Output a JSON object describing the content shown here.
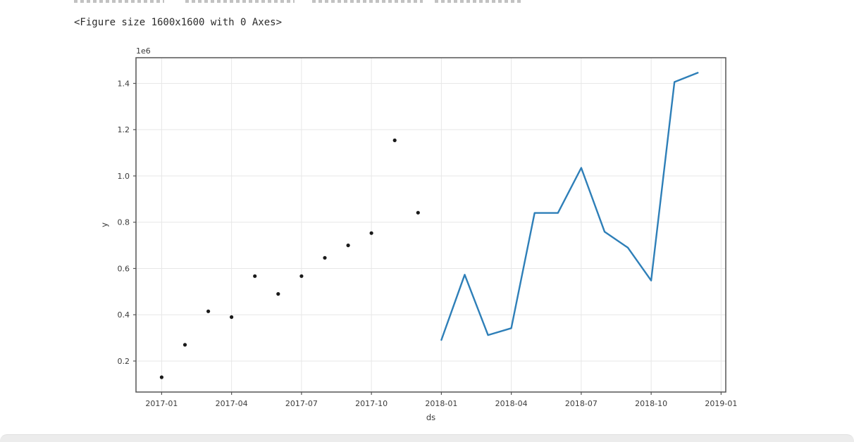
{
  "output": {
    "figure_caption": "<Figure size 1600x1600 with 0 Axes>"
  },
  "colors": {
    "page_bg": "#ffffff",
    "grid": "#e7e7e7",
    "spine": "#555555",
    "tick_text": "#3a3a3a",
    "caption_text": "#2b2b2b",
    "scatter": "#1a1a1a",
    "line": "#2e7fb8",
    "bottom_bar": "#ececec"
  },
  "chart_data": {
    "type": "line",
    "title": "",
    "xlabel": "ds",
    "ylabel": "y",
    "y_axis_multiplier_label": "1e6",
    "grid": true,
    "legend": "none",
    "x_tick_labels": [
      "2017-01",
      "2017-04",
      "2017-07",
      "2017-10",
      "2018-01",
      "2018-04",
      "2018-07",
      "2018-10",
      "2019-01"
    ],
    "y_tick_labels": [
      "0.2",
      "0.4",
      "0.6",
      "0.8",
      "1.0",
      "1.2",
      "1.4"
    ],
    "y_tick_values": [
      200000,
      400000,
      600000,
      800000,
      1000000,
      1200000,
      1400000
    ],
    "xlim_months_from_2017_01": [
      -1.1,
      24.2
    ],
    "ylim": [
      66000,
      1511000
    ],
    "series": [
      {
        "name": "black-scatter-points",
        "type": "scatter",
        "color": "#1a1a1a",
        "marker_radius": 2.6,
        "x": [
          "2017-01",
          "2017-02",
          "2017-03",
          "2017-04",
          "2017-05",
          "2017-06",
          "2017-07",
          "2017-08",
          "2017-09",
          "2017-10",
          "2017-11",
          "2017-12"
        ],
        "y": [
          130000,
          270000,
          415000,
          390000,
          567000,
          490000,
          567000,
          646000,
          700000,
          753000,
          1154000,
          841000
        ]
      },
      {
        "name": "blue-line",
        "type": "line",
        "color": "#2e7fb8",
        "line_width": 2.4,
        "x": [
          "2018-01",
          "2018-02",
          "2018-03",
          "2018-04",
          "2018-05",
          "2018-06",
          "2018-07",
          "2018-08",
          "2018-09",
          "2018-10",
          "2018-11",
          "2018-12"
        ],
        "y": [
          291000,
          573000,
          312000,
          342000,
          840000,
          840000,
          1035000,
          759000,
          690000,
          548000,
          1406000,
          1446000
        ]
      }
    ]
  }
}
